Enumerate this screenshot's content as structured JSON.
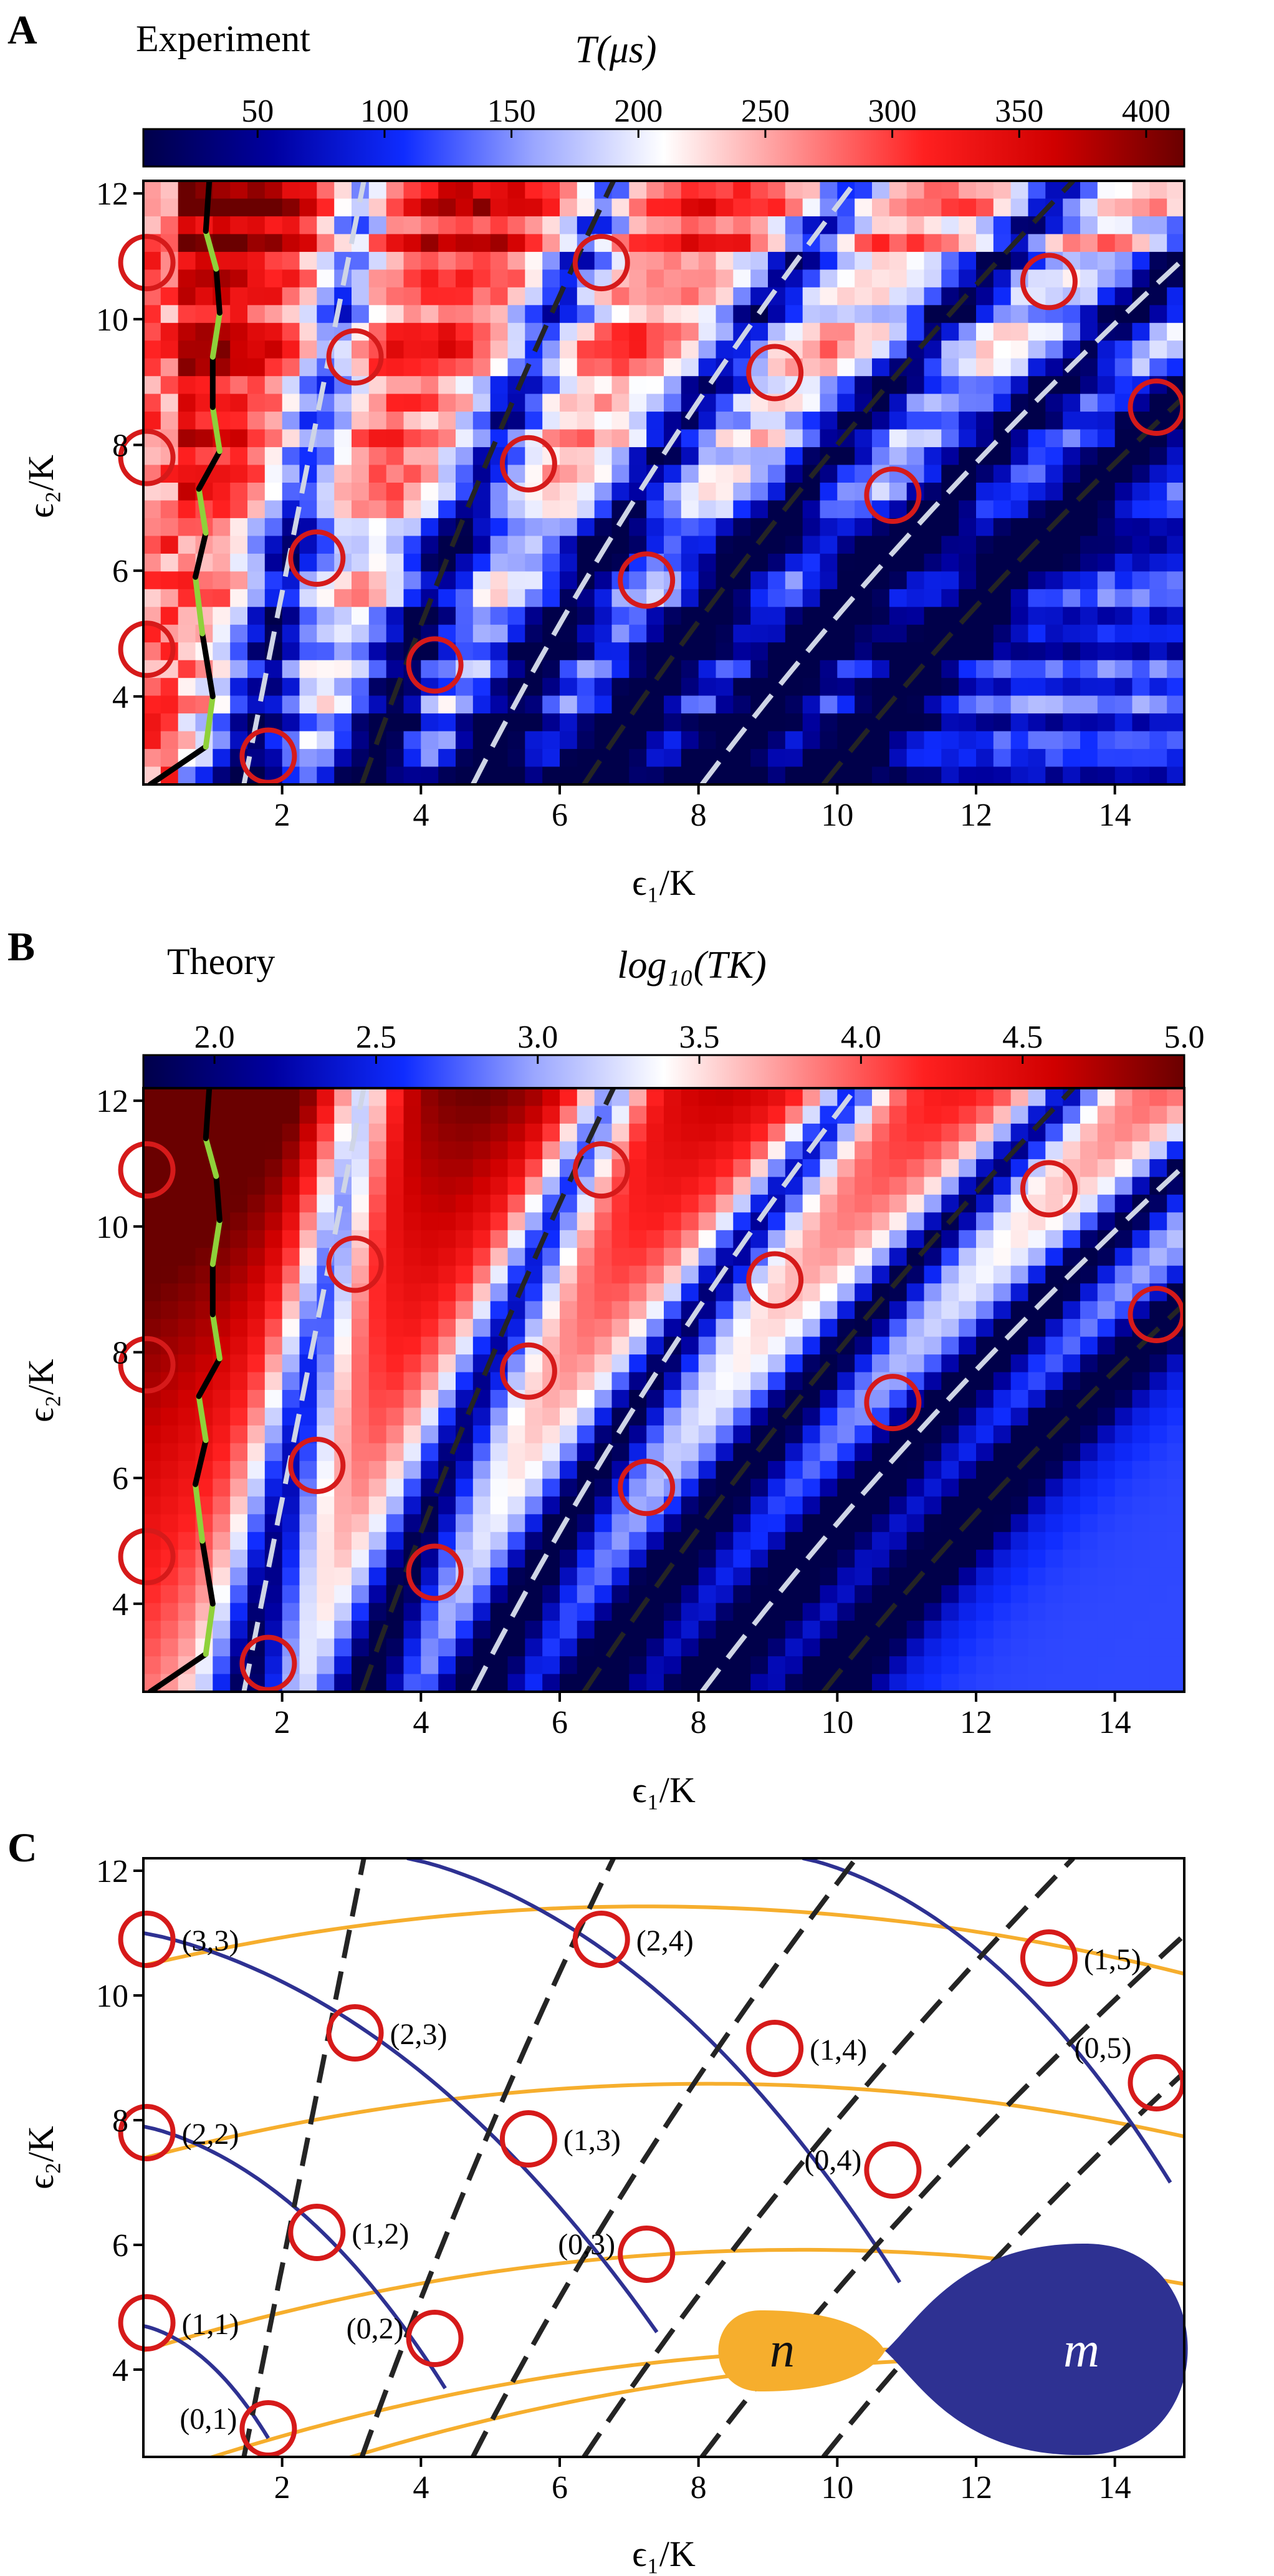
{
  "figure": {
    "panel_letters": [
      "A",
      "B",
      "C"
    ],
    "axis_label_x": "ϵ₁/K",
    "axis_label_y": "ϵ₂/K",
    "x_ticks": [
      "2",
      "4",
      "6",
      "8",
      "10",
      "12",
      "14"
    ],
    "y_ticks": [
      "4",
      "6",
      "8",
      "10",
      "12"
    ]
  },
  "colors": {
    "cmap": [
      "#00004a",
      "#0000a0",
      "#0f2cff",
      "#9aa6ff",
      "#ffffff",
      "#ff8f8f",
      "#ff2020",
      "#d00000",
      "#6a0000"
    ],
    "circle": "#d61a1a",
    "dash_light": "#cfd5e6",
    "dash_dark": "#242424",
    "boundary_black": "#000000",
    "boundary_green": "#8fd13a",
    "orange": "#f6ae2d",
    "navy": "#2e3192"
  },
  "chart_data": [
    {
      "panel": "A",
      "type": "heatmap",
      "title": "Experiment",
      "colorbar_label": "T(μs)",
      "colorbar_ticks": [
        50,
        100,
        150,
        200,
        250,
        300,
        350,
        400
      ],
      "colorbar_range": [
        5,
        415
      ],
      "xlim": [
        0,
        15
      ],
      "ylim": [
        2.6,
        12.2
      ],
      "xlabel": "ϵ₁/K",
      "ylabel": "ϵ₂/K",
      "circles": [
        [
          0.05,
          10.9
        ],
        [
          0.05,
          7.8
        ],
        [
          0.05,
          4.75
        ],
        [
          1.8,
          3.05
        ],
        [
          2.5,
          6.2
        ],
        [
          3.05,
          9.4
        ],
        [
          4.2,
          4.5
        ],
        [
          5.55,
          7.7
        ],
        [
          6.6,
          10.9
        ],
        [
          7.25,
          5.85
        ],
        [
          9.1,
          9.15
        ],
        [
          10.8,
          7.2
        ],
        [
          13.05,
          10.6
        ],
        [
          14.6,
          8.6
        ]
      ]
    },
    {
      "panel": "B",
      "type": "heatmap",
      "title": "Theory",
      "colorbar_label": "log₁₀(TK)",
      "colorbar_ticks": [
        "2.0",
        "2.5",
        "3.0",
        "3.5",
        "4.0",
        "4.5",
        "5.0"
      ],
      "colorbar_range": [
        1.78,
        5.0
      ],
      "xlim": [
        0,
        15
      ],
      "ylim": [
        2.6,
        12.2
      ],
      "xlabel": "ϵ₁/K",
      "ylabel": "ϵ₂/K",
      "circles": [
        [
          0.05,
          10.9
        ],
        [
          0.05,
          7.8
        ],
        [
          0.05,
          4.75
        ],
        [
          1.8,
          3.05
        ],
        [
          2.5,
          6.2
        ],
        [
          3.05,
          9.4
        ],
        [
          4.2,
          4.5
        ],
        [
          5.55,
          7.7
        ],
        [
          6.6,
          10.9
        ],
        [
          7.25,
          5.85
        ],
        [
          9.1,
          9.15
        ],
        [
          10.8,
          7.2
        ],
        [
          13.05,
          10.6
        ],
        [
          14.6,
          8.6
        ]
      ]
    },
    {
      "panel": "C",
      "type": "line",
      "xlim": [
        0,
        15
      ],
      "ylim": [
        2.6,
        12.2
      ],
      "xlabel": "ϵ₁/K",
      "ylabel": "ϵ₂/K",
      "points": [
        {
          "label": "(0,1)",
          "x": 1.8,
          "y": 3.05
        },
        {
          "label": "(1,1)",
          "x": 0.05,
          "y": 4.75
        },
        {
          "label": "(0,2)",
          "x": 4.2,
          "y": 4.5
        },
        {
          "label": "(1,2)",
          "x": 2.5,
          "y": 6.2
        },
        {
          "label": "(2,2)",
          "x": 0.05,
          "y": 7.8
        },
        {
          "label": "(0,3)",
          "x": 7.25,
          "y": 5.85
        },
        {
          "label": "(1,3)",
          "x": 5.55,
          "y": 7.7
        },
        {
          "label": "(2,3)",
          "x": 3.05,
          "y": 9.4
        },
        {
          "label": "(3,3)",
          "x": 0.05,
          "y": 10.9
        },
        {
          "label": "(0,4)",
          "x": 10.8,
          "y": 7.2
        },
        {
          "label": "(1,4)",
          "x": 9.1,
          "y": 9.15
        },
        {
          "label": "(2,4)",
          "x": 6.6,
          "y": 10.9
        },
        {
          "label": "(0,5)",
          "x": 14.6,
          "y": 8.6
        },
        {
          "label": "(1,5)",
          "x": 13.05,
          "y": 10.6
        }
      ],
      "inset_labels": {
        "n": "n",
        "m": "m"
      }
    }
  ]
}
